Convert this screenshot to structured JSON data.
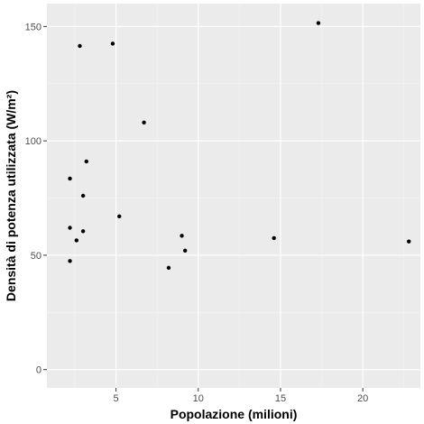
{
  "chart_data": {
    "type": "scatter",
    "title": "",
    "xlabel": "Popolazione (milioni)",
    "ylabel": "Densità di potenza utilizzata (W/m²)",
    "xlim": [
      0.8,
      23.5
    ],
    "ylim": [
      -8,
      160
    ],
    "x_ticks": [
      5,
      10,
      15,
      20
    ],
    "y_ticks": [
      0,
      50,
      100,
      150
    ],
    "x_minor_ticks": [
      2.5,
      7.5,
      12.5,
      17.5,
      22.5
    ],
    "y_minor_ticks": [
      25,
      75,
      125
    ],
    "grid": true,
    "colors": {
      "panel": "#ebebeb",
      "grid_major": "#ffffff",
      "grid_minor": "#f5f5f5",
      "point": "#000000"
    },
    "points": [
      {
        "x": 2.8,
        "y": 141.5
      },
      {
        "x": 4.8,
        "y": 142.5
      },
      {
        "x": 17.3,
        "y": 151.5
      },
      {
        "x": 6.7,
        "y": 108.0
      },
      {
        "x": 3.2,
        "y": 91.0
      },
      {
        "x": 2.2,
        "y": 83.5
      },
      {
        "x": 3.0,
        "y": 76.0
      },
      {
        "x": 5.2,
        "y": 67.0
      },
      {
        "x": 2.2,
        "y": 62.0
      },
      {
        "x": 3.0,
        "y": 60.5
      },
      {
        "x": 2.6,
        "y": 56.5
      },
      {
        "x": 9.0,
        "y": 58.5
      },
      {
        "x": 14.6,
        "y": 57.5
      },
      {
        "x": 22.8,
        "y": 56.0
      },
      {
        "x": 9.2,
        "y": 52.0
      },
      {
        "x": 2.2,
        "y": 47.5
      },
      {
        "x": 8.2,
        "y": 44.5
      }
    ]
  }
}
